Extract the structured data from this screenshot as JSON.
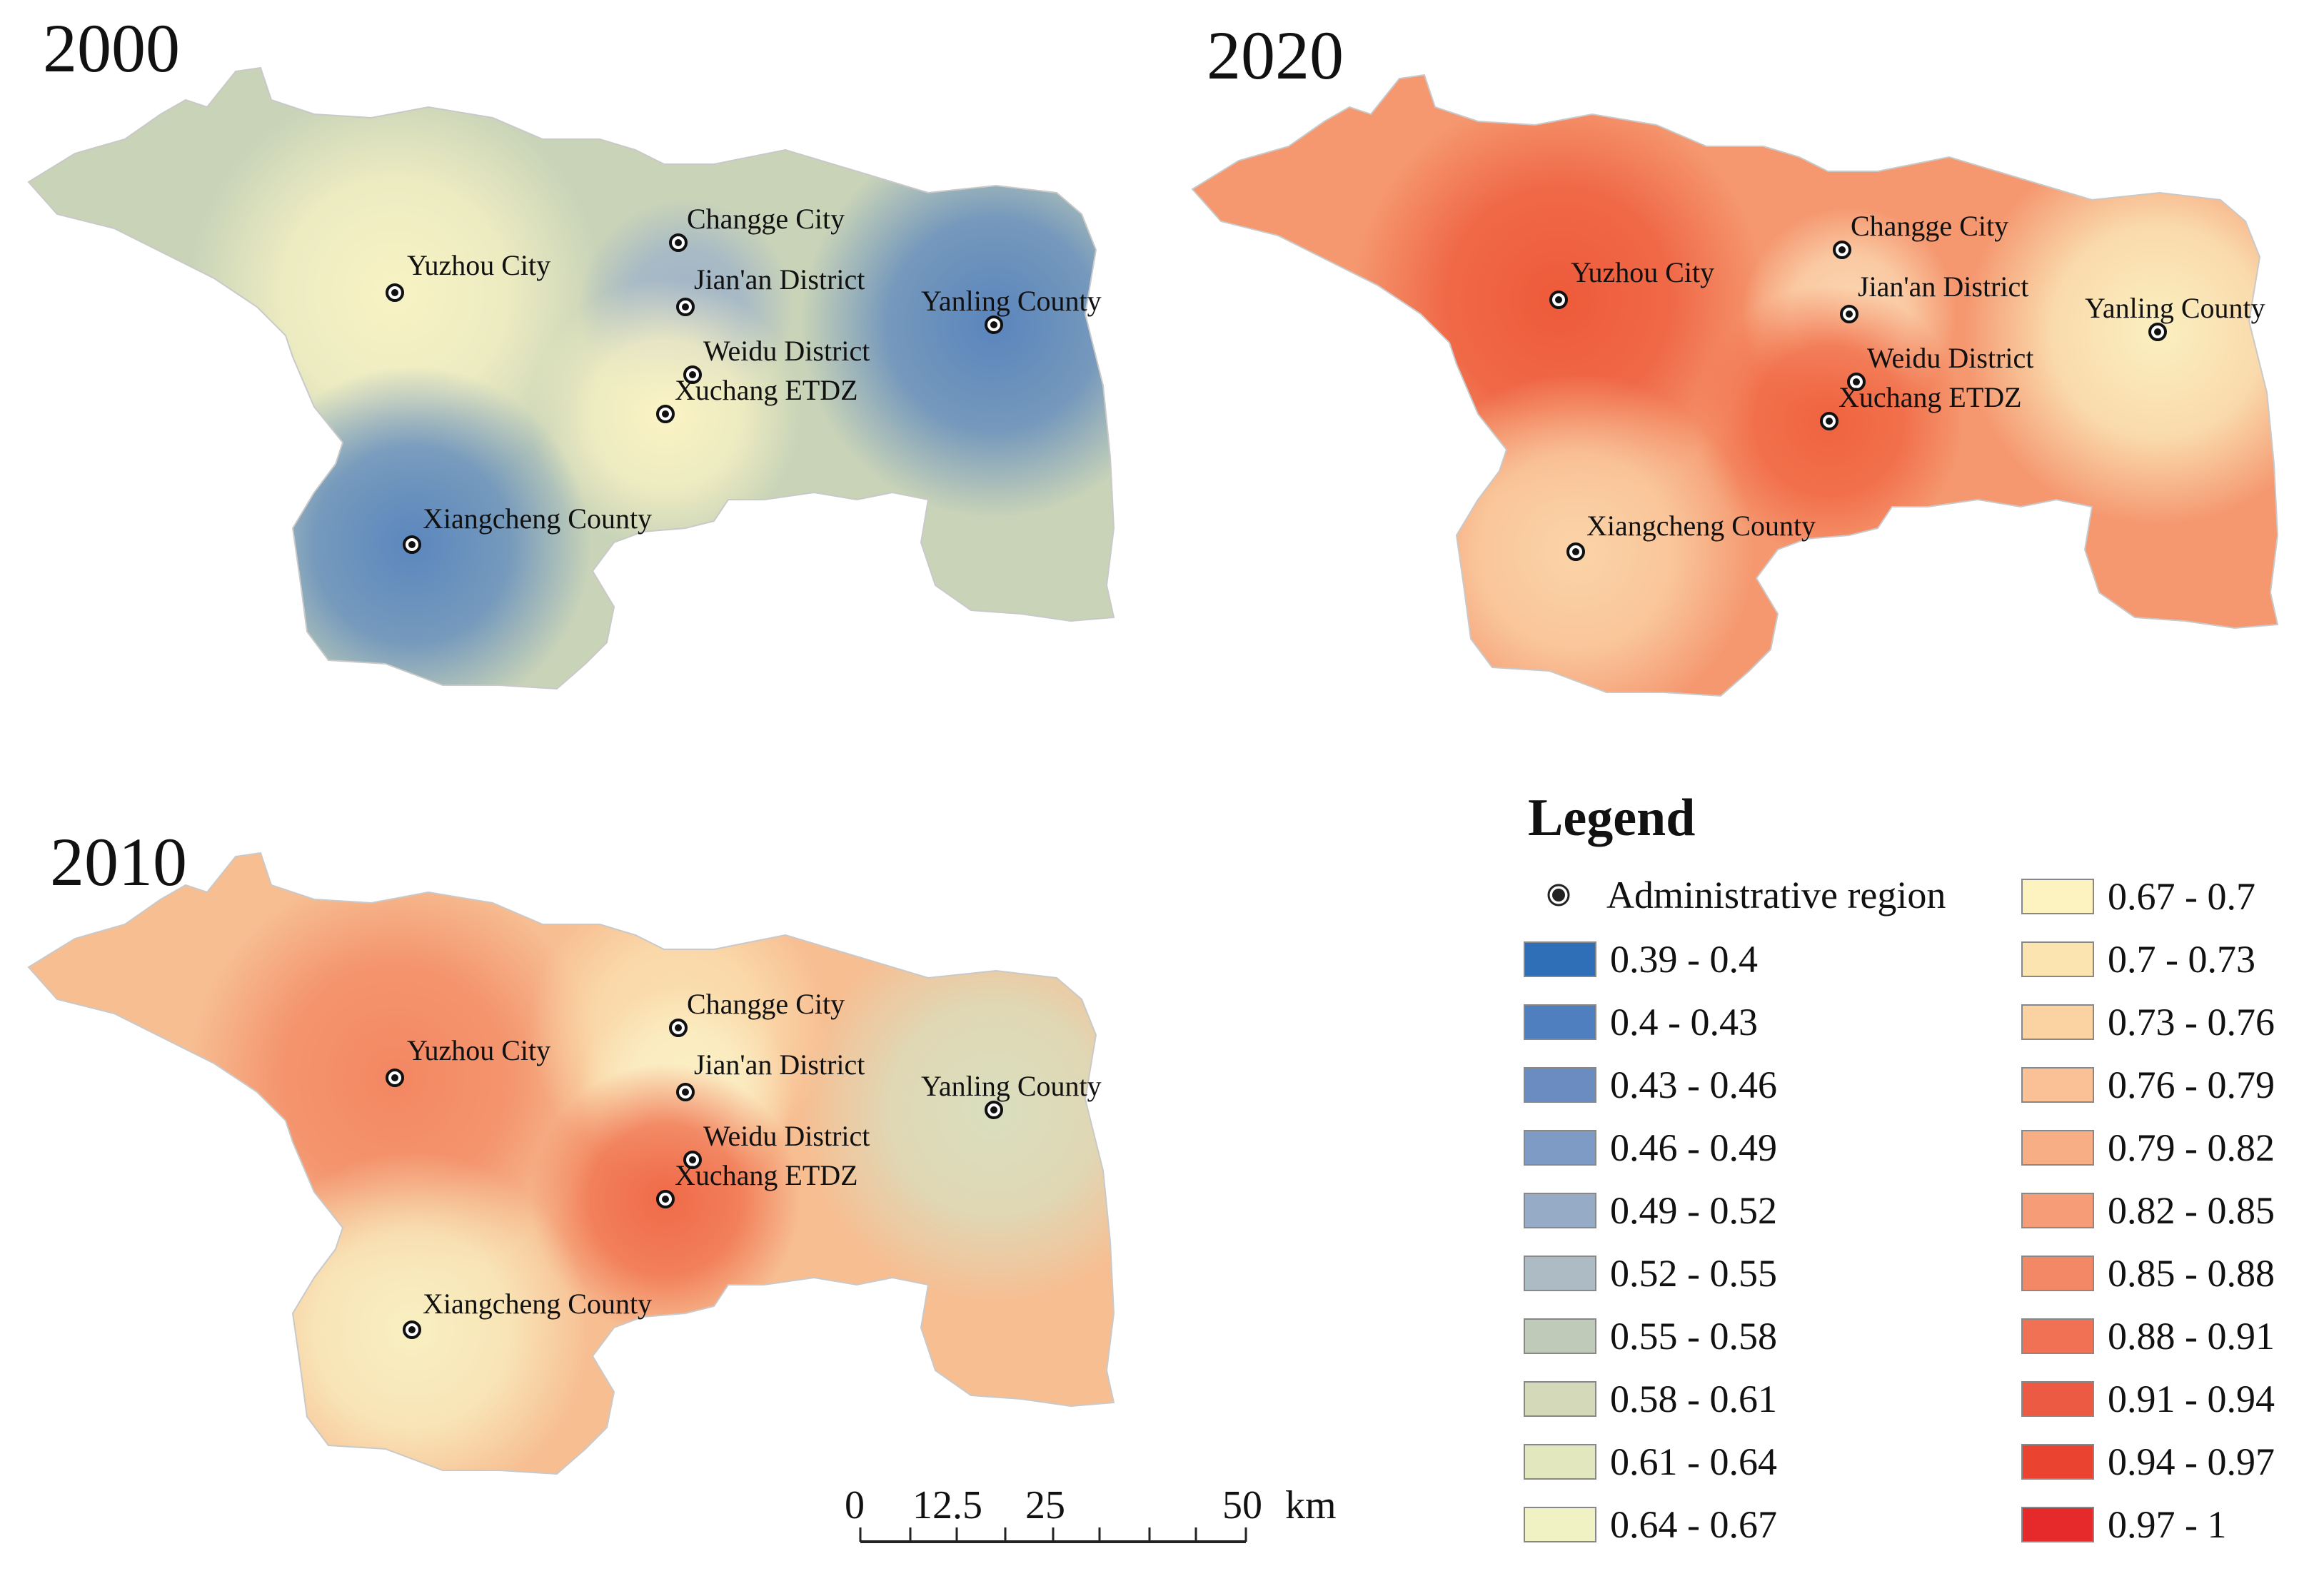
{
  "maps": [
    {
      "year": "2000",
      "colors": {
        "base": "#c8d3b8",
        "light": "#f6efc2",
        "dark": "#5b86bd",
        "mid": "#9fb3c4"
      },
      "hotspots": [
        {
          "place": "Yuzhou City",
          "color": "#f8f3c4"
        },
        {
          "place": "Jian'an District",
          "color": "#9fb3c9"
        },
        {
          "place": "Xuchang ETDZ",
          "color": "#faf3c4"
        },
        {
          "place": "Yanling County",
          "color": "#5a85bd"
        },
        {
          "place": "Xiangcheng County",
          "color": "#5b87be"
        }
      ]
    },
    {
      "year": "2020",
      "colors": {
        "base": "#f59870",
        "light": "#fbe5b3",
        "dark": "#ee5a3a",
        "mid": "#f6b08a"
      },
      "hotspots": [
        {
          "place": "Yuzhou City",
          "color": "#ee5a3a"
        },
        {
          "place": "Jian'an District",
          "color": "#fbd9b3"
        },
        {
          "place": "Xuchang ETDZ",
          "color": "#f0633f"
        },
        {
          "place": "Yanling County",
          "color": "#fbf0c0"
        },
        {
          "place": "Xiangcheng County",
          "color": "#fbd4a8"
        }
      ]
    },
    {
      "year": "2010",
      "colors": {
        "base": "#f7be92",
        "light": "#f8f0c2",
        "dark": "#f17d58",
        "mid": "#f9d9a8"
      },
      "hotspots": [
        {
          "place": "Yuzhou City",
          "color": "#f38762"
        },
        {
          "place": "Changge City",
          "color": "#fbe0b0"
        },
        {
          "place": "Jian'an District",
          "color": "#fbf0c6"
        },
        {
          "place": "Xuchang ETDZ",
          "color": "#f06a48"
        },
        {
          "place": "Yanling County",
          "color": "#d9dfbf"
        },
        {
          "place": "Xiangcheng County",
          "color": "#f8f0c2"
        }
      ]
    }
  ],
  "places": [
    "Yuzhou City",
    "Changge City",
    "Jian'an District",
    "Weidu District",
    "Xuchang ETDZ",
    "Yanling County",
    "Xiangcheng County"
  ],
  "legend": {
    "title": "Legend",
    "point_label": "Administrative region",
    "classes": [
      {
        "label": "0.39 - 0.4",
        "color": "#2f6fb8"
      },
      {
        "label": "0.4 - 0.43",
        "color": "#4f7fbe"
      },
      {
        "label": "0.43 - 0.46",
        "color": "#6a8cc0"
      },
      {
        "label": "0.46 - 0.49",
        "color": "#7d9bc4"
      },
      {
        "label": "0.49 - 0.52",
        "color": "#96abc5"
      },
      {
        "label": "0.52 - 0.55",
        "color": "#acbbc4"
      },
      {
        "label": "0.55 - 0.58",
        "color": "#bfcab9"
      },
      {
        "label": "0.58 - 0.61",
        "color": "#d3d9b9"
      },
      {
        "label": "0.61 - 0.64",
        "color": "#e3e7be"
      },
      {
        "label": "0.64 - 0.67",
        "color": "#f1f2c4"
      },
      {
        "label": "0.67 - 0.7",
        "color": "#fcf3c0"
      },
      {
        "label": "0.7 - 0.73",
        "color": "#fce4b0"
      },
      {
        "label": "0.73 - 0.76",
        "color": "#fbd3a3"
      },
      {
        "label": "0.76 - 0.79",
        "color": "#f9c195"
      },
      {
        "label": "0.79 - 0.82",
        "color": "#f8ae85"
      },
      {
        "label": "0.82 - 0.85",
        "color": "#f69c76"
      },
      {
        "label": "0.85 - 0.88",
        "color": "#f38866"
      },
      {
        "label": "0.88 - 0.91",
        "color": "#f07154"
      },
      {
        "label": "0.91 - 0.94",
        "color": "#ed5a43"
      },
      {
        "label": "0.94 - 0.97",
        "color": "#ea4330"
      },
      {
        "label": "0.97 - 1",
        "color": "#e6292a"
      }
    ]
  },
  "scale_bar": {
    "ticks": [
      "0",
      "12.5",
      "25",
      "50"
    ],
    "unit": "km"
  }
}
